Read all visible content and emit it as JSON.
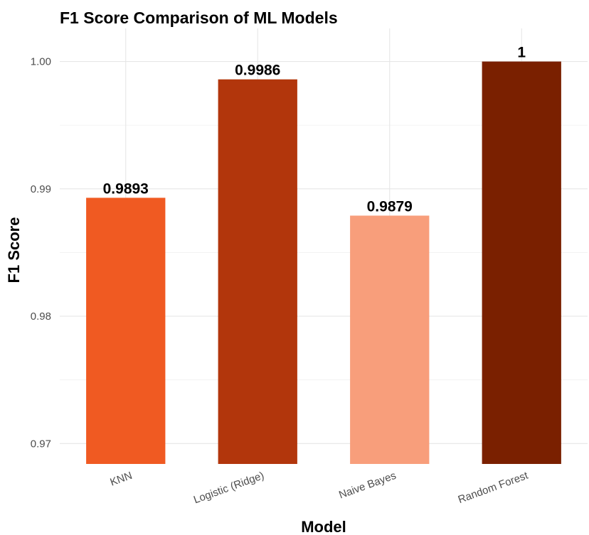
{
  "chart_data": {
    "type": "bar",
    "title": "F1 Score Comparison of ML Models",
    "xlabel": "Model",
    "ylabel": "F1 Score",
    "categories": [
      "KNN",
      "Logistic (Ridge)",
      "Naive Bayes",
      "Random Forest"
    ],
    "values": [
      0.9893,
      0.9986,
      0.9879,
      1
    ],
    "data_labels": [
      "0.9893",
      "0.9986",
      "0.9879",
      "1"
    ],
    "colors": [
      "#f05a22",
      "#b2360c",
      "#f89e7b",
      "#7a2000"
    ],
    "ylim": [
      0.9684,
      1.0026
    ],
    "yticks": [
      0.97,
      0.98,
      0.99,
      1.0
    ],
    "ytick_labels": [
      "0.97",
      "0.98",
      "0.99",
      "1.00"
    ],
    "grid": true,
    "legend": "none"
  }
}
